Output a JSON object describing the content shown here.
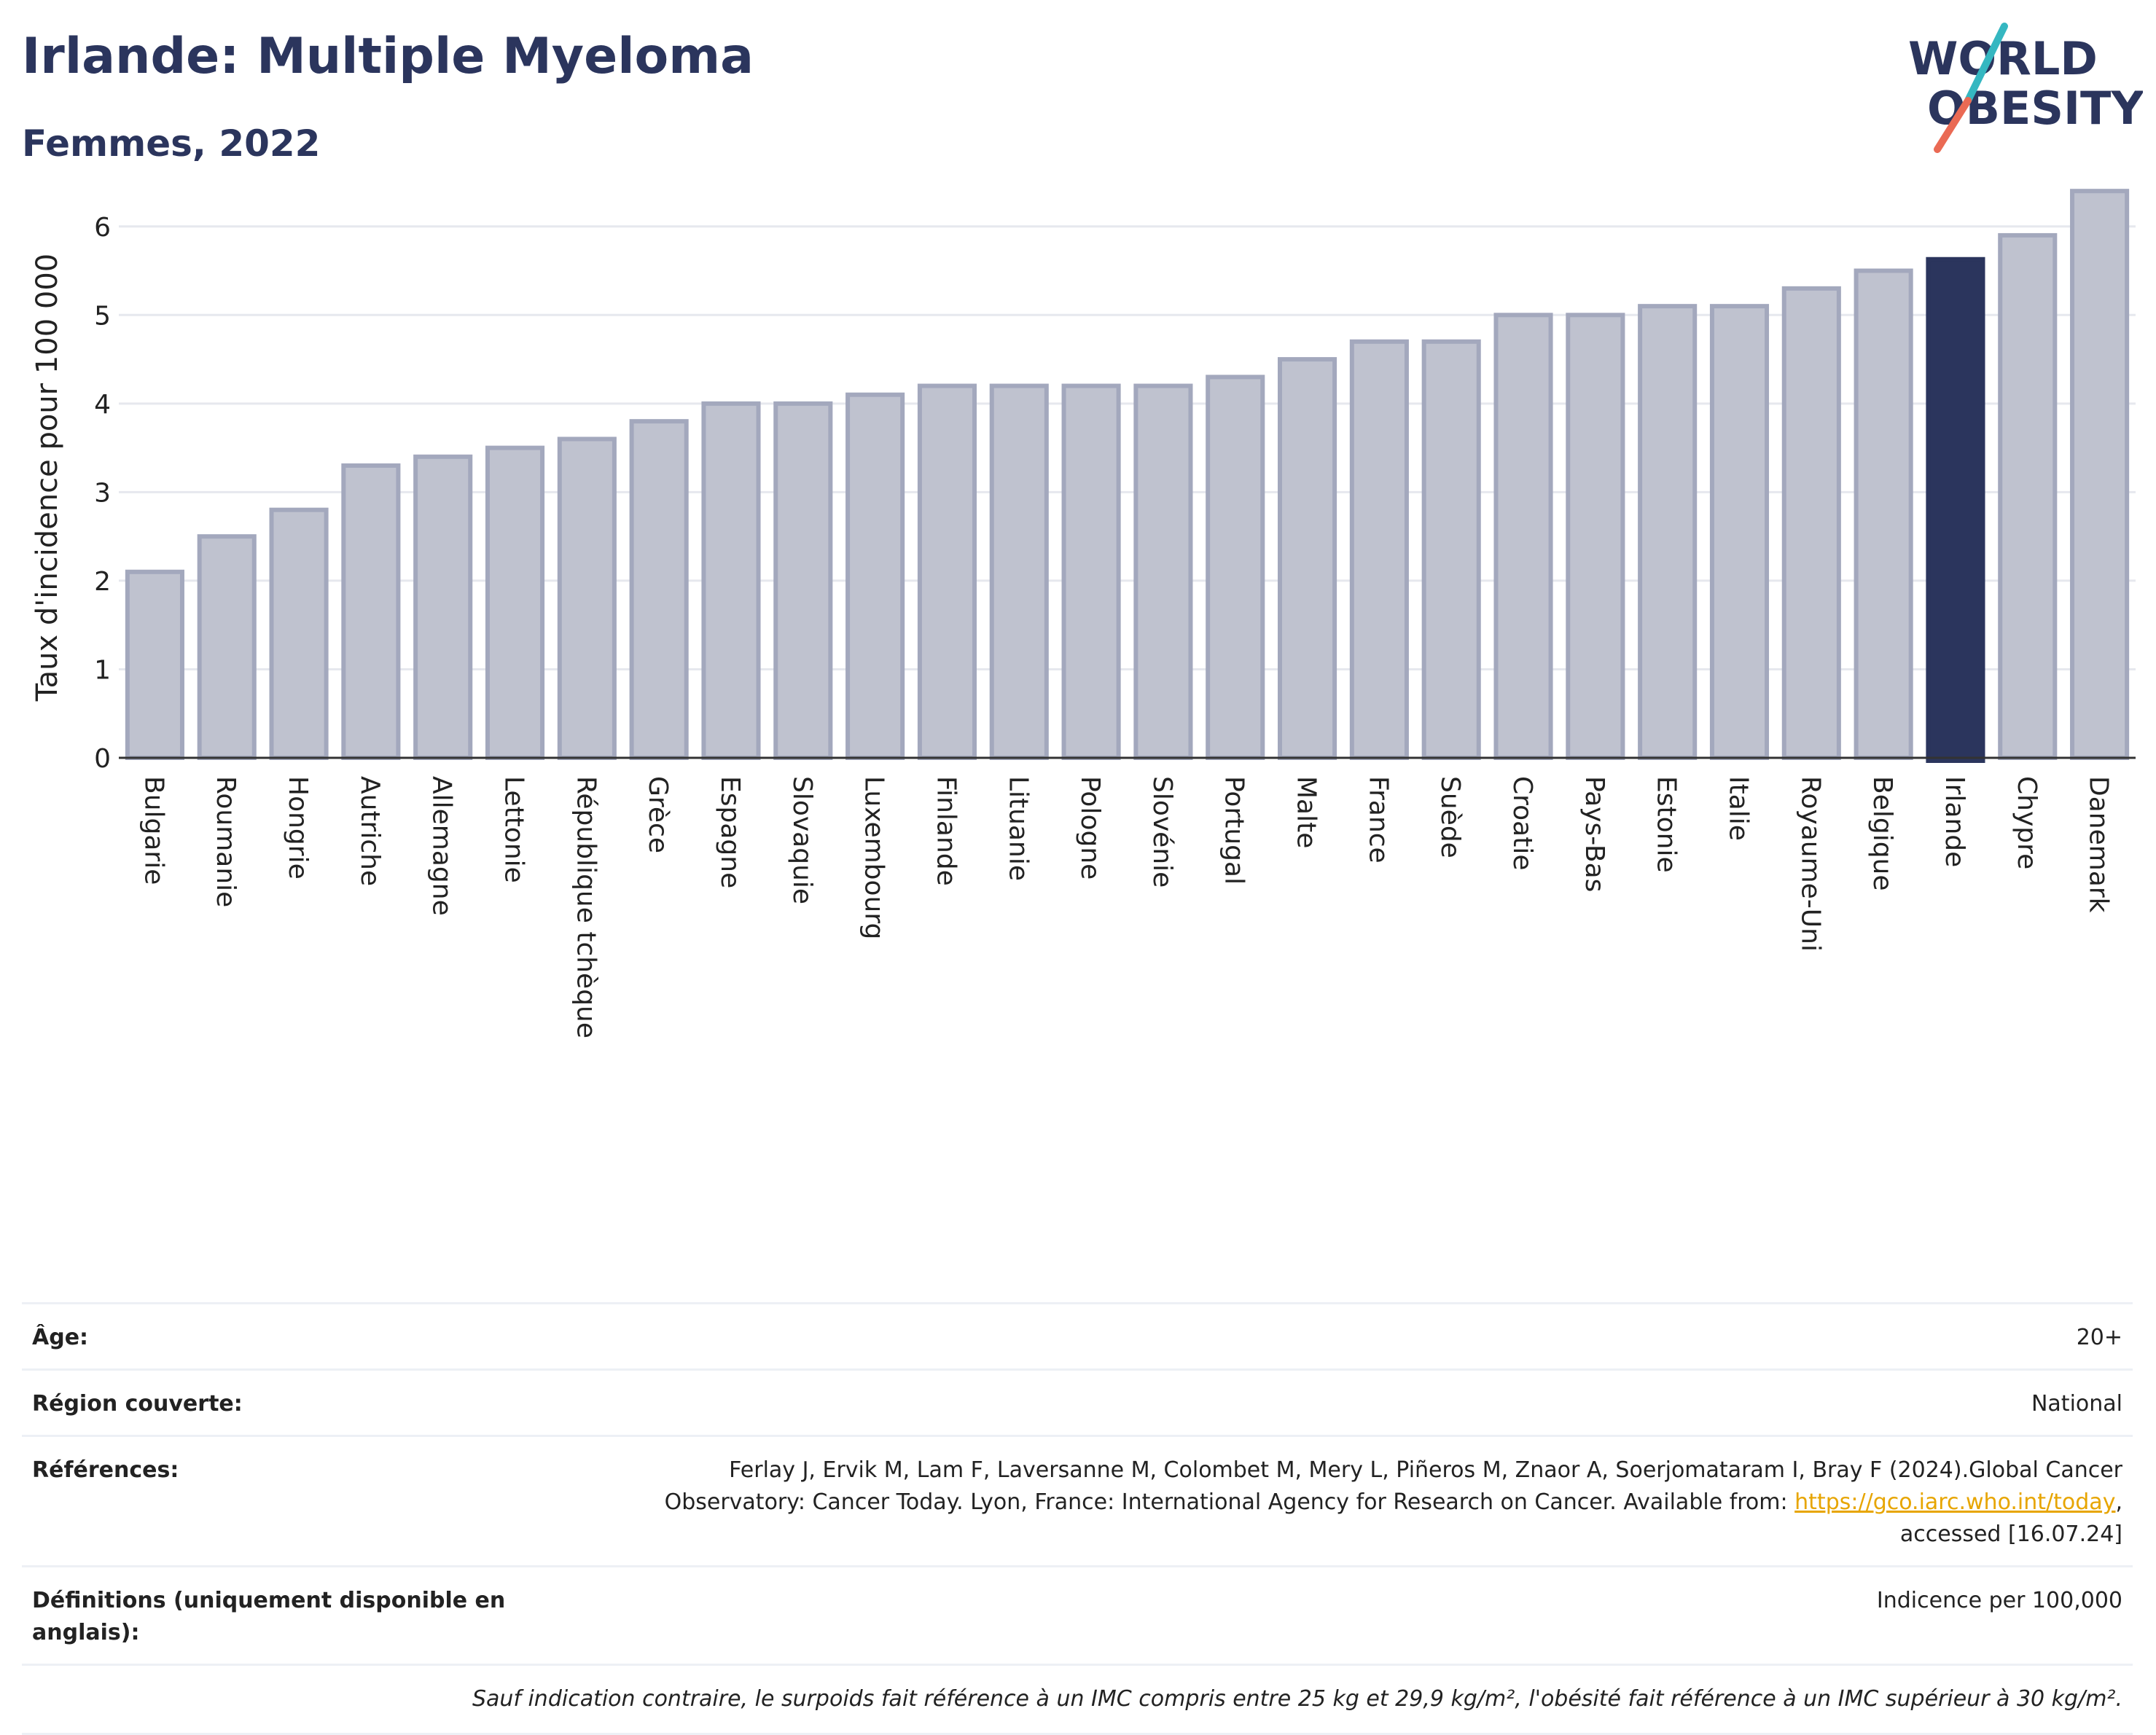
{
  "header": {
    "title": "Irlande: Multiple Myeloma",
    "subtitle": "Femmes, 2022"
  },
  "logo": {
    "line1": "WORLD",
    "line2": "OBESITY",
    "accent_colors": [
      "#35b7c1",
      "#ea6a54"
    ]
  },
  "chart_data": {
    "type": "bar",
    "ylabel": "Taux d'incidence pour 100 000",
    "ylim": [
      0,
      6.5
    ],
    "yticks": [
      0,
      1,
      2,
      3,
      4,
      5,
      6
    ],
    "grid": true,
    "highlight": "Irlande",
    "colors": {
      "bar": "#bfc2cf",
      "bar_edge": "#a3a8bd",
      "highlight": "#2b355d"
    },
    "categories": [
      "Bulgarie",
      "Roumanie",
      "Hongrie",
      "Autriche",
      "Allemagne",
      "Lettonie",
      "République tchèque",
      "Grèce",
      "Espagne",
      "Slovaquie",
      "Luxembourg",
      "Finlande",
      "Lituanie",
      "Pologne",
      "Slovénie",
      "Portugal",
      "Malte",
      "France",
      "Suède",
      "Croatie",
      "Pays-Bas",
      "Estonie",
      "Italie",
      "Royaume-Uni",
      "Belgique",
      "Irlande",
      "Chypre",
      "Danemark"
    ],
    "values": [
      2.1,
      2.5,
      2.8,
      3.3,
      3.4,
      3.5,
      3.6,
      3.8,
      4.0,
      4.0,
      4.1,
      4.2,
      4.2,
      4.2,
      4.2,
      4.3,
      4.5,
      4.7,
      4.7,
      5.0,
      5.0,
      5.1,
      5.1,
      5.3,
      5.5,
      5.63,
      5.9,
      6.4
    ]
  },
  "meta": {
    "age_label": "Âge:",
    "age_value": "20+",
    "region_label": "Région couverte:",
    "region_value": "National",
    "refs_label": "Références:",
    "refs_text_1": "Ferlay J, Ervik M, Lam F, Laversanne M, Colombet M, Mery L, Piñeros M, Znaor A, Soerjomataram I, Bray F (2024).Global Cancer Observatory: Cancer Today. Lyon, France: International Agency for Research on Cancer. Available from: ",
    "refs_link": "https://gco.iarc.who.int/today",
    "refs_text_2": ", accessed [16.07.24]",
    "defs_label": "Définitions (uniquement disponible en anglais):",
    "defs_value": "Indicence per 100,000",
    "note": "Sauf indication contraire, le surpoids fait référence à un IMC compris entre 25 kg et 29,9 kg/m², l'obésité fait référence à un IMC supérieur à 30 kg/m²."
  }
}
